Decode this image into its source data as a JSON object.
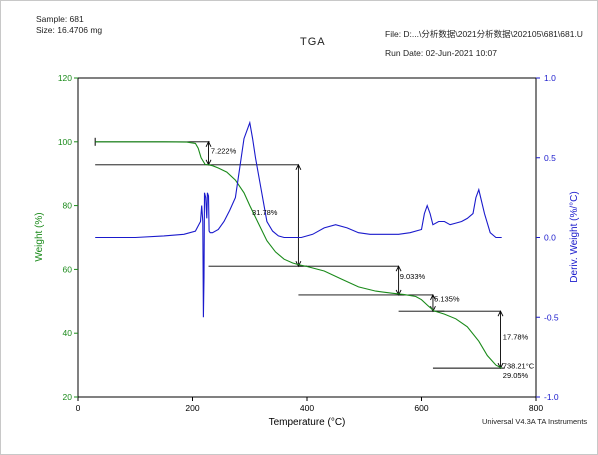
{
  "header": {
    "sample": "Sample: 681",
    "size": "Size:  16.4706 mg",
    "title": "TGA",
    "file": "File: D:...\\分析数据\\2021分析数据\\202105\\681\\681.U",
    "run_date": "Run Date: 02-Jun-2021 10:07",
    "footer": "Universal V4.3A TA Instruments"
  },
  "colors": {
    "weight": "#1a8a1a",
    "deriv": "#1a1acc",
    "annotation": "#000000",
    "frame": "#000000"
  },
  "chart_data": {
    "type": "line",
    "title": "TGA",
    "xlabel": "Temperature (°C)",
    "ylabel_left": "Weight (%)",
    "ylabel_right": "Deriv. Weight (%/°C)",
    "xlim": [
      0,
      800
    ],
    "ylim_left": [
      20,
      120
    ],
    "ylim_right": [
      -1.0,
      1.0
    ],
    "x_ticks": [
      "0",
      "200",
      "400",
      "600",
      "800"
    ],
    "y_left_ticks": [
      "20",
      "40",
      "60",
      "80",
      "100",
      "120"
    ],
    "y_right_ticks": [
      "-1.0",
      "-0.5",
      "0.0",
      "0.5",
      "1.0"
    ],
    "grid": false,
    "series": [
      {
        "axis": "left",
        "x": [
          30,
          100,
          150,
          190,
          205,
          210,
          215,
          222,
          228,
          235,
          245,
          260,
          275,
          290,
          300,
          315,
          330,
          345,
          360,
          375,
          385,
          400,
          430,
          460,
          490,
          520,
          550,
          570,
          590,
          600,
          612,
          622,
          640,
          660,
          680,
          700,
          715,
          730,
          740
        ],
        "y": [
          100.0,
          100.0,
          100.0,
          99.9,
          99.5,
          98.0,
          95.0,
          92.9,
          92.8,
          92.5,
          91.8,
          90.5,
          88.0,
          84.0,
          80.0,
          74.5,
          69.0,
          65.5,
          63.2,
          62.0,
          61.5,
          60.9,
          59.5,
          57.0,
          54.5,
          53.2,
          52.5,
          52.1,
          51.5,
          50.5,
          48.5,
          47.0,
          46.0,
          44.5,
          42.0,
          37.5,
          33.0,
          30.0,
          29.05
        ]
      },
      {
        "axis": "right",
        "x": [
          30,
          100,
          150,
          185,
          205,
          214,
          216,
          218,
          219,
          220,
          221,
          223,
          225,
          226,
          228,
          229,
          231,
          235,
          245,
          255,
          265,
          275,
          285,
          290,
          300,
          305,
          310,
          320,
          330,
          340,
          350,
          360,
          375,
          390,
          410,
          430,
          450,
          470,
          490,
          510,
          530,
          560,
          580,
          600,
          605,
          610,
          615,
          620,
          630,
          640,
          650,
          660,
          670,
          680,
          690,
          695,
          700,
          710,
          720,
          730,
          740
        ],
        "y": [
          0.0,
          0.0,
          0.01,
          0.02,
          0.04,
          0.1,
          0.2,
          0.1,
          -0.5,
          -0.25,
          0.28,
          0.25,
          0.12,
          0.28,
          0.26,
          0.04,
          0.03,
          0.03,
          0.05,
          0.1,
          0.17,
          0.25,
          0.5,
          0.62,
          0.72,
          0.62,
          0.5,
          0.3,
          0.1,
          0.04,
          0.01,
          0.0,
          0.0,
          0.0,
          0.02,
          0.06,
          0.08,
          0.06,
          0.03,
          0.02,
          0.02,
          0.02,
          0.03,
          0.05,
          0.15,
          0.2,
          0.15,
          0.08,
          0.1,
          0.1,
          0.08,
          0.09,
          0.1,
          0.12,
          0.15,
          0.25,
          0.3,
          0.15,
          0.03,
          0.0,
          0.0
        ]
      }
    ],
    "annotations": [
      {
        "label": "7.222%",
        "x": 232,
        "y": 96.4
      },
      {
        "label": "31.78%",
        "x": 304,
        "y": 77.0
      },
      {
        "label": "9.033%",
        "x": 562,
        "y": 57.0
      },
      {
        "label": "5.135%",
        "x": 622,
        "y": 50.0
      },
      {
        "label": "17.78%",
        "x": 742,
        "y": 38.0
      },
      {
        "label": "738.21°C",
        "x": 742,
        "y": 29.0
      },
      {
        "label": "29.05%",
        "x": 742,
        "y": 26.0
      }
    ],
    "steps": [
      {
        "x1": 30,
        "x2": 230,
        "y1": 100.0,
        "y2": 92.8,
        "xv": 228
      },
      {
        "x1": 228,
        "x2": 400,
        "y1": 92.8,
        "y2": 61.0,
        "xv": 385
      },
      {
        "x1": 385,
        "x2": 570,
        "y1": 61.0,
        "y2": 52.0,
        "xv": 560
      },
      {
        "x1": 560,
        "x2": 640,
        "y1": 52.0,
        "y2": 46.9,
        "xv": 620
      },
      {
        "x1": 620,
        "x2": 745,
        "y1": 46.9,
        "y2": 29.05,
        "xv": 738
      }
    ]
  }
}
